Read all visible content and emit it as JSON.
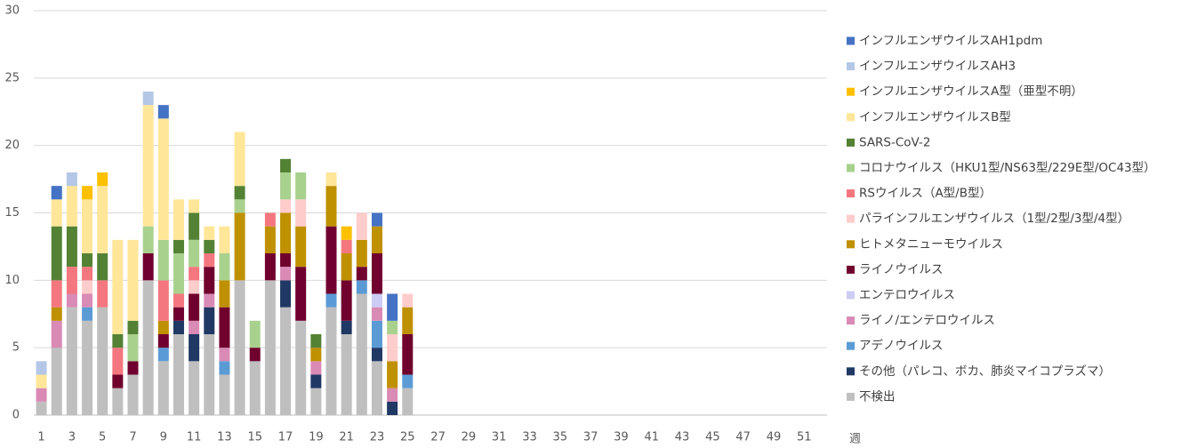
{
  "chart_data": {
    "type": "bar",
    "stacked": true,
    "categories": [
      1,
      null,
      3,
      null,
      5,
      null,
      7,
      null,
      9,
      null,
      11,
      null,
      13,
      null,
      15,
      null,
      17,
      null,
      19,
      null,
      21,
      null,
      23,
      null,
      25,
      null,
      27,
      null,
      29,
      null,
      31,
      null,
      33,
      null,
      35,
      null,
      37,
      null,
      39,
      null,
      41,
      null,
      43,
      null,
      45,
      null,
      47,
      null,
      49,
      null,
      51,
      null
    ],
    "x_label": "週",
    "ylim": [
      0,
      30
    ],
    "yticks": [
      0,
      5,
      10,
      15,
      20,
      25,
      30
    ],
    "grid": true,
    "series": [
      {
        "name": "不検出",
        "color": "#bfbfbf",
        "values": [
          1,
          5,
          8,
          7,
          8,
          2,
          3,
          10,
          4,
          6,
          4,
          6,
          3,
          10,
          4,
          10,
          8,
          7,
          2,
          8,
          6,
          9,
          4,
          0,
          2,
          null,
          null,
          null,
          null,
          null,
          null,
          null,
          null,
          null,
          null,
          null,
          null,
          null,
          null,
          null,
          null,
          null,
          null,
          null,
          null,
          null,
          null,
          null,
          null,
          null,
          null,
          null
        ]
      },
      {
        "name": "その他（パレコ、ボカ、肺炎マイコプラズマ）",
        "color": "#203864",
        "values": [
          0,
          0,
          0,
          0,
          0,
          0,
          0,
          0,
          0,
          1,
          2,
          2,
          0,
          0,
          0,
          0,
          2,
          0,
          1,
          0,
          1,
          0,
          1,
          1,
          0,
          null,
          null,
          null,
          null,
          null,
          null,
          null,
          null,
          null,
          null,
          null,
          null,
          null,
          null,
          null,
          null,
          null,
          null,
          null,
          null,
          null,
          null,
          null,
          null,
          null,
          null,
          null
        ]
      },
      {
        "name": "アデノウイルス",
        "color": "#5b9bd5",
        "values": [
          0,
          0,
          0,
          1,
          0,
          0,
          0,
          0,
          1,
          0,
          0,
          0,
          1,
          0,
          0,
          0,
          0,
          0,
          0,
          1,
          0,
          1,
          2,
          0,
          1,
          null,
          null,
          null,
          null,
          null,
          null,
          null,
          null,
          null,
          null,
          null,
          null,
          null,
          null,
          null,
          null,
          null,
          null,
          null,
          null,
          null,
          null,
          null,
          null,
          null,
          null,
          null
        ]
      },
      {
        "name": "ライノ/エンテロウイルス",
        "color": "#d98ab5",
        "values": [
          1,
          2,
          1,
          1,
          0,
          0,
          0,
          0,
          0,
          0,
          1,
          1,
          1,
          0,
          0,
          0,
          1,
          0,
          1,
          0,
          0,
          0,
          1,
          1,
          0,
          null,
          null,
          null,
          null,
          null,
          null,
          null,
          null,
          null,
          null,
          null,
          null,
          null,
          null,
          null,
          null,
          null,
          null,
          null,
          null,
          null,
          null,
          null,
          null,
          null,
          null,
          null
        ]
      },
      {
        "name": "エンテロウイルス",
        "color": "#ccccf5",
        "values": [
          0,
          0,
          0,
          0,
          0,
          0,
          0,
          0,
          0,
          0,
          0,
          0,
          0,
          0,
          0,
          0,
          0,
          0,
          0,
          0,
          0,
          0,
          1,
          0,
          0,
          null,
          null,
          null,
          null,
          null,
          null,
          null,
          null,
          null,
          null,
          null,
          null,
          null,
          null,
          null,
          null,
          null,
          null,
          null,
          null,
          null,
          null,
          null,
          null,
          null,
          null,
          null
        ]
      },
      {
        "name": "ライノウイルス",
        "color": "#70002e",
        "values": [
          0,
          0,
          0,
          0,
          0,
          1,
          1,
          2,
          1,
          1,
          2,
          2,
          3,
          0,
          1,
          2,
          1,
          4,
          0,
          5,
          3,
          1,
          3,
          0,
          3,
          null,
          null,
          null,
          null,
          null,
          null,
          null,
          null,
          null,
          null,
          null,
          null,
          null,
          null,
          null,
          null,
          null,
          null,
          null,
          null,
          null,
          null,
          null,
          null,
          null,
          null,
          null
        ]
      },
      {
        "name": "ヒトメタニューモウイルス",
        "color": "#bf9000",
        "values": [
          0,
          1,
          0,
          0,
          0,
          0,
          0,
          0,
          1,
          0,
          0,
          0,
          2,
          5,
          0,
          2,
          3,
          3,
          1,
          3,
          2,
          2,
          2,
          2,
          2,
          null,
          null,
          null,
          null,
          null,
          null,
          null,
          null,
          null,
          null,
          null,
          null,
          null,
          null,
          null,
          null,
          null,
          null,
          null,
          null,
          null,
          null,
          null,
          null,
          null,
          null,
          null
        ]
      },
      {
        "name": "パラインフルエンザウイルス（1型/2型/3型/4型）",
        "color": "#ffcccc",
        "values": [
          0,
          0,
          0,
          1,
          0,
          0,
          0,
          0,
          0,
          0,
          1,
          0,
          0,
          0,
          0,
          0,
          1,
          2,
          0,
          0,
          0,
          2,
          0,
          2,
          1,
          null,
          null,
          null,
          null,
          null,
          null,
          null,
          null,
          null,
          null,
          null,
          null,
          null,
          null,
          null,
          null,
          null,
          null,
          null,
          null,
          null,
          null,
          null,
          null,
          null,
          null,
          null
        ]
      },
      {
        "name": "RSウイルス（A型/B型）",
        "color": "#f4777f",
        "values": [
          0,
          2,
          2,
          1,
          2,
          2,
          0,
          0,
          3,
          1,
          1,
          1,
          0,
          0,
          0,
          1,
          0,
          0,
          0,
          0,
          1,
          0,
          0,
          0,
          0,
          null,
          null,
          null,
          null,
          null,
          null,
          null,
          null,
          null,
          null,
          null,
          null,
          null,
          null,
          null,
          null,
          null,
          null,
          null,
          null,
          null,
          null,
          null,
          null,
          null,
          null,
          null
        ]
      },
      {
        "name": "コロナウイルス（HKU1型/NS63型/229E型/OC43型）",
        "color": "#a9d18e",
        "values": [
          0,
          0,
          0,
          0,
          0,
          0,
          2,
          2,
          3,
          3,
          2,
          0,
          2,
          1,
          2,
          0,
          2,
          2,
          0,
          0,
          0,
          0,
          0,
          1,
          0,
          null,
          null,
          null,
          null,
          null,
          null,
          null,
          null,
          null,
          null,
          null,
          null,
          null,
          null,
          null,
          null,
          null,
          null,
          null,
          null,
          null,
          null,
          null,
          null,
          null,
          null,
          null
        ]
      },
      {
        "name": "SARS-CoV-2",
        "color": "#548235",
        "values": [
          0,
          4,
          3,
          1,
          2,
          1,
          1,
          0,
          0,
          1,
          2,
          1,
          0,
          1,
          0,
          0,
          1,
          0,
          1,
          0,
          0,
          0,
          0,
          0,
          0,
          null,
          null,
          null,
          null,
          null,
          null,
          null,
          null,
          null,
          null,
          null,
          null,
          null,
          null,
          null,
          null,
          null,
          null,
          null,
          null,
          null,
          null,
          null,
          null,
          null,
          null,
          null
        ]
      },
      {
        "name": "インフルエンザウイルスB型",
        "color": "#ffe699",
        "values": [
          1,
          2,
          3,
          4,
          5,
          7,
          6,
          9,
          9,
          3,
          1,
          1,
          2,
          4,
          0,
          0,
          0,
          0,
          0,
          1,
          0,
          0,
          0,
          0,
          0,
          null,
          null,
          null,
          null,
          null,
          null,
          null,
          null,
          null,
          null,
          null,
          null,
          null,
          null,
          null,
          null,
          null,
          null,
          null,
          null,
          null,
          null,
          null,
          null,
          null,
          null,
          null
        ]
      },
      {
        "name": "インフルエンザウイルスA型（亜型不明）",
        "color": "#ffc000",
        "values": [
          0,
          0,
          0,
          1,
          1,
          0,
          0,
          0,
          0,
          0,
          0,
          0,
          0,
          0,
          0,
          0,
          0,
          0,
          0,
          0,
          1,
          0,
          0,
          0,
          0,
          null,
          null,
          null,
          null,
          null,
          null,
          null,
          null,
          null,
          null,
          null,
          null,
          null,
          null,
          null,
          null,
          null,
          null,
          null,
          null,
          null,
          null,
          null,
          null,
          null,
          null,
          null
        ]
      },
      {
        "name": "インフルエンザウイルスAH3",
        "color": "#b4c7e7",
        "values": [
          1,
          0,
          1,
          0,
          0,
          0,
          0,
          1,
          0,
          0,
          0,
          0,
          0,
          0,
          0,
          0,
          0,
          0,
          0,
          0,
          0,
          0,
          0,
          0,
          0,
          null,
          null,
          null,
          null,
          null,
          null,
          null,
          null,
          null,
          null,
          null,
          null,
          null,
          null,
          null,
          null,
          null,
          null,
          null,
          null,
          null,
          null,
          null,
          null,
          null,
          null,
          null
        ]
      },
      {
        "name": "インフルエンザウイルスAH1pdm",
        "color": "#4472c4",
        "values": [
          0,
          1,
          0,
          0,
          0,
          0,
          0,
          0,
          1,
          0,
          0,
          0,
          0,
          0,
          0,
          0,
          0,
          0,
          0,
          0,
          0,
          0,
          1,
          2,
          0,
          null,
          null,
          null,
          null,
          null,
          null,
          null,
          null,
          null,
          null,
          null,
          null,
          null,
          null,
          null,
          null,
          null,
          null,
          null,
          null,
          null,
          null,
          null,
          null,
          null,
          null,
          null
        ]
      }
    ]
  }
}
